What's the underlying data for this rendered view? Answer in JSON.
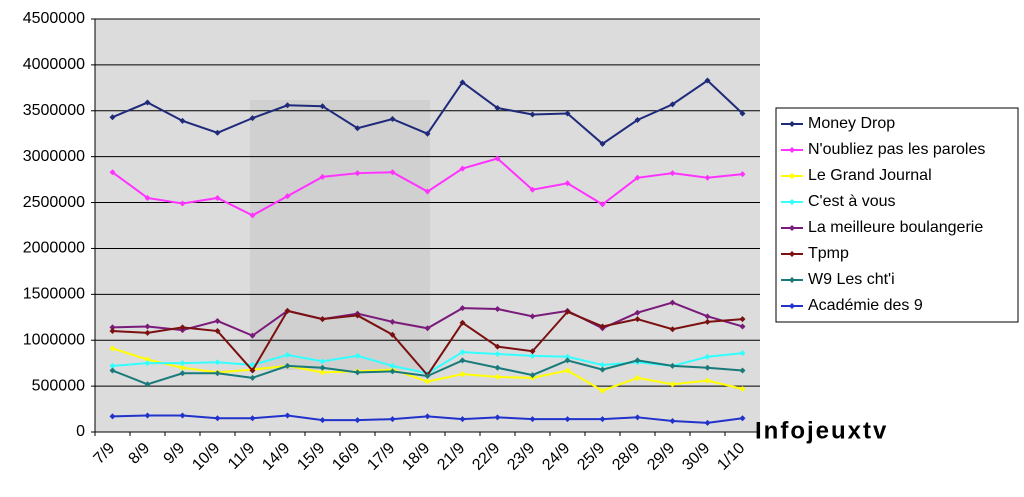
{
  "chart_data": {
    "type": "line",
    "categories": [
      "7/9",
      "8/9",
      "9/9",
      "10/9",
      "11/9",
      "14/9",
      "15/9",
      "16/9",
      "17/9",
      "18/9",
      "21/9",
      "22/9",
      "23/9",
      "24/9",
      "25/9",
      "28/9",
      "29/9",
      "30/9",
      "1/10"
    ],
    "series": [
      {
        "name": "Money Drop",
        "color": "#1f2a7a",
        "values": [
          3430000,
          3590000,
          3390000,
          3260000,
          3420000,
          3560000,
          3550000,
          3310000,
          3410000,
          3250000,
          3810000,
          3530000,
          3460000,
          3470000,
          3140000,
          3400000,
          3570000,
          3830000,
          3470000
        ]
      },
      {
        "name": "N'oubliez pas les paroles",
        "color": "#ff33ff",
        "values": [
          2830000,
          2550000,
          2490000,
          2550000,
          2360000,
          2570000,
          2780000,
          2820000,
          2830000,
          2620000,
          2870000,
          2980000,
          2640000,
          2710000,
          2480000,
          2770000,
          2820000,
          2770000,
          2810000
        ]
      },
      {
        "name": "Le Grand Journal",
        "color": "#ffff00",
        "values": [
          910000,
          790000,
          700000,
          650000,
          680000,
          720000,
          650000,
          660000,
          680000,
          550000,
          630000,
          600000,
          590000,
          670000,
          450000,
          590000,
          520000,
          560000,
          470000
        ]
      },
      {
        "name": "C'est à vous",
        "color": "#33ffff",
        "values": [
          720000,
          750000,
          750000,
          760000,
          730000,
          840000,
          770000,
          830000,
          720000,
          640000,
          870000,
          850000,
          830000,
          820000,
          730000,
          760000,
          720000,
          820000,
          860000
        ]
      },
      {
        "name": "La meilleure boulangerie",
        "color": "#7a1a7a",
        "values": [
          1140000,
          1150000,
          1110000,
          1210000,
          1050000,
          1320000,
          1230000,
          1290000,
          1200000,
          1130000,
          1350000,
          1340000,
          1260000,
          1320000,
          1130000,
          1300000,
          1410000,
          1260000,
          1150000
        ]
      },
      {
        "name": "Tpmp",
        "color": "#7a1010",
        "values": [
          1100000,
          1080000,
          1140000,
          1100000,
          670000,
          1320000,
          1230000,
          1270000,
          1060000,
          620000,
          1190000,
          930000,
          880000,
          1310000,
          1150000,
          1230000,
          1120000,
          1200000,
          1230000
        ]
      },
      {
        "name": "W9 Les cht'i",
        "color": "#1a7a7a",
        "values": [
          670000,
          520000,
          640000,
          640000,
          590000,
          720000,
          700000,
          650000,
          660000,
          610000,
          780000,
          700000,
          620000,
          780000,
          680000,
          780000,
          720000,
          700000,
          670000
        ]
      },
      {
        "name": "Académie des 9",
        "color": "#2233cc",
        "values": [
          170000,
          180000,
          180000,
          150000,
          150000,
          180000,
          130000,
          130000,
          140000,
          170000,
          140000,
          160000,
          140000,
          140000,
          140000,
          160000,
          120000,
          100000,
          150000
        ]
      }
    ],
    "ylim": [
      0,
      4500000
    ],
    "yticks": [
      0,
      500000,
      1000000,
      1500000,
      2000000,
      2500000,
      3000000,
      3500000,
      4000000,
      4500000
    ],
    "grid": true,
    "legend": "right",
    "watermark": "Infojeuxtv"
  }
}
